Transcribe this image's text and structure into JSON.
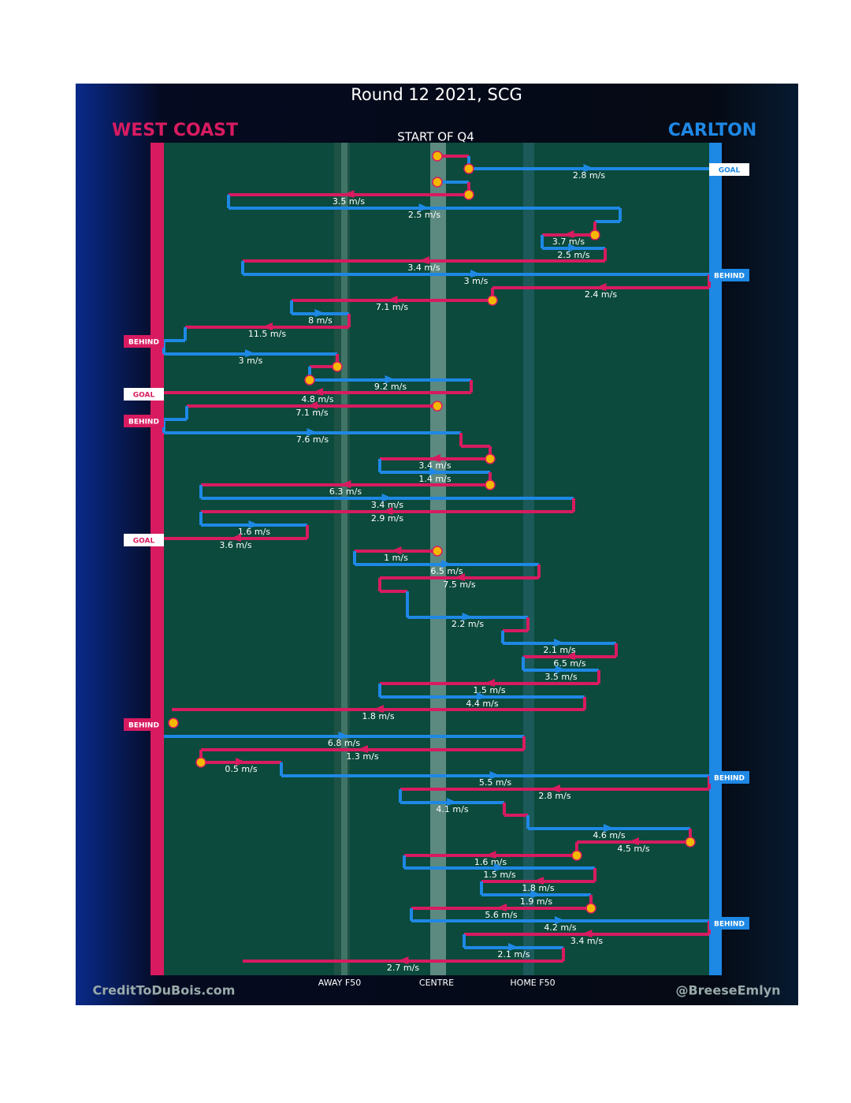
{
  "title": "Round 12 2021, SCG",
  "teams": {
    "left": "WEST COAST",
    "right": "CARLTON"
  },
  "start_label": "START OF Q4",
  "zones": {
    "away": "AWAY F50",
    "centre": "CENTRE",
    "home": "HOME F50"
  },
  "credits": {
    "left": "CreditToDuBois.com",
    "right": "@BreeseEmlyn"
  },
  "speeds": [
    "2.8 m/s",
    "3.5 m/s",
    "2.5 m/s",
    "3.7 m/s",
    "2.5 m/s",
    "3.4 m/s",
    "3 m/s",
    "2.4 m/s",
    "7.1 m/s",
    "8 m/s",
    "11.5 m/s",
    "3 m/s",
    "9.2 m/s",
    "4.8 m/s",
    "7.1 m/s",
    "7.6 m/s",
    "3.4 m/s",
    "1.4 m/s",
    "6.3 m/s",
    "3.4 m/s",
    "2.9 m/s",
    "1.6 m/s",
    "3.6 m/s",
    "1 m/s",
    "6.5 m/s",
    "7.5 m/s",
    "2.2 m/s",
    "2.1 m/s",
    "6.5 m/s",
    "3.5 m/s",
    "1.5 m/s",
    "4.4 m/s",
    "1.8 m/s",
    "6.8 m/s",
    "1.3 m/s",
    "0.5 m/s",
    "5.5 m/s",
    "2.8 m/s",
    "4.1 m/s",
    "4.6 m/s",
    "4.5 m/s",
    "1.6 m/s",
    "1.5 m/s",
    "1.8 m/s",
    "1.9 m/s",
    "5.6 m/s",
    "4.2 m/s",
    "3.4 m/s",
    "2.1 m/s",
    "2.7 m/s"
  ],
  "outcomes": [
    "GOAL",
    "BEHIND",
    "BEHIND",
    "GOAL",
    "BEHIND",
    "GOAL",
    "BEHIND",
    "BEHIND",
    "BEHIND"
  ]
}
